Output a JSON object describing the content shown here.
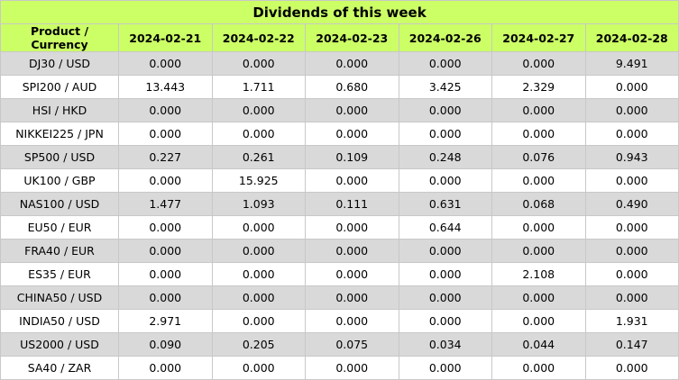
{
  "title": "Dividends of this week",
  "table": {
    "header": [
      "Product / Currency",
      "2024-02-21",
      "2024-02-22",
      "2024-02-23",
      "2024-02-26",
      "2024-02-27",
      "2024-02-28"
    ],
    "rows": [
      [
        "DJ30 / USD",
        "0.000",
        "0.000",
        "0.000",
        "0.000",
        "0.000",
        "9.491"
      ],
      [
        "SPI200 / AUD",
        "13.443",
        "1.711",
        "0.680",
        "3.425",
        "2.329",
        "0.000"
      ],
      [
        "HSI / HKD",
        "0.000",
        "0.000",
        "0.000",
        "0.000",
        "0.000",
        "0.000"
      ],
      [
        "NIKKEI225 / JPN",
        "0.000",
        "0.000",
        "0.000",
        "0.000",
        "0.000",
        "0.000"
      ],
      [
        "SP500 / USD",
        "0.227",
        "0.261",
        "0.109",
        "0.248",
        "0.076",
        "0.943"
      ],
      [
        "UK100 / GBP",
        "0.000",
        "15.925",
        "0.000",
        "0.000",
        "0.000",
        "0.000"
      ],
      [
        "NAS100 / USD",
        "1.477",
        "1.093",
        "0.111",
        "0.631",
        "0.068",
        "0.490"
      ],
      [
        "EU50 / EUR",
        "0.000",
        "0.000",
        "0.000",
        "0.644",
        "0.000",
        "0.000"
      ],
      [
        "FRA40 / EUR",
        "0.000",
        "0.000",
        "0.000",
        "0.000",
        "0.000",
        "0.000"
      ],
      [
        "ES35 / EUR",
        "0.000",
        "0.000",
        "0.000",
        "0.000",
        "2.108",
        "0.000"
      ],
      [
        "CHINA50 / USD",
        "0.000",
        "0.000",
        "0.000",
        "0.000",
        "0.000",
        "0.000"
      ],
      [
        "INDIA50 / USD",
        "2.971",
        "0.000",
        "0.000",
        "0.000",
        "0.000",
        "1.931"
      ],
      [
        "US2000 / USD",
        "0.090",
        "0.205",
        "0.075",
        "0.034",
        "0.044",
        "0.147"
      ],
      [
        "SA40 / ZAR",
        "0.000",
        "0.000",
        "0.000",
        "0.000",
        "0.000",
        "0.000"
      ]
    ]
  }
}
